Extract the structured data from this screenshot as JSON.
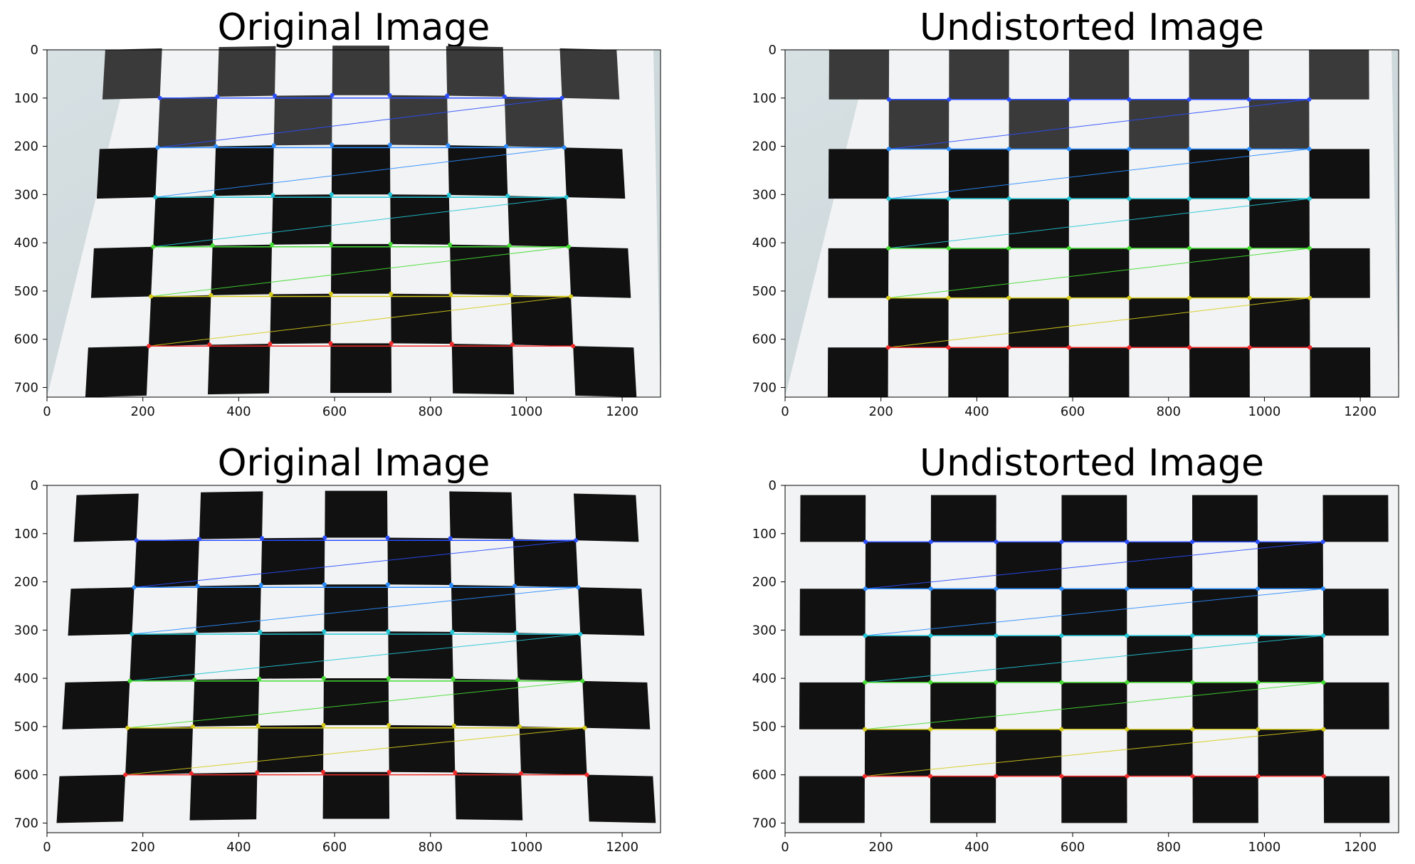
{
  "figure": {
    "panels": [
      {
        "title": "Original Image",
        "image": {
          "kind": "checkerboard",
          "board_theme": "gray-top",
          "calibration_lines": true
        },
        "x_ticks": [
          "0",
          "200",
          "400",
          "600",
          "800",
          "1000",
          "1200"
        ],
        "y_ticks": [
          "0",
          "100",
          "200",
          "300",
          "400",
          "500",
          "600",
          "700"
        ]
      },
      {
        "title": "Undistorted Image",
        "image": {
          "kind": "checkerboard",
          "board_theme": "gray-top",
          "calibration_lines": true
        },
        "x_ticks": [
          "0",
          "200",
          "400",
          "600",
          "800",
          "1000",
          "1200"
        ],
        "y_ticks": [
          "0",
          "100",
          "200",
          "300",
          "400",
          "500",
          "600",
          "700"
        ]
      },
      {
        "title": "Original Image",
        "image": {
          "kind": "checkerboard",
          "board_theme": "black",
          "calibration_lines": true
        },
        "x_ticks": [
          "0",
          "200",
          "400",
          "600",
          "800",
          "1000",
          "1200"
        ],
        "y_ticks": [
          "0",
          "100",
          "200",
          "300",
          "400",
          "500",
          "600",
          "700"
        ]
      },
      {
        "title": "Undistorted Image",
        "image": {
          "kind": "checkerboard",
          "board_theme": "black",
          "calibration_lines": true
        },
        "x_ticks": [
          "0",
          "200",
          "400",
          "600",
          "800",
          "1000",
          "1200"
        ],
        "y_ticks": [
          "0",
          "100",
          "200",
          "300",
          "400",
          "500",
          "600",
          "700"
        ]
      }
    ],
    "colors": {
      "background": "#d3dde0",
      "paper": "#f2f3f4",
      "square_dark": "#111111",
      "square_gray": "#3a3a3a",
      "line_rows": [
        "#2a4dff",
        "#2a8cff",
        "#22c6d6",
        "#44dd33",
        "#d6cc1b",
        "#f02a2a"
      ]
    }
  }
}
